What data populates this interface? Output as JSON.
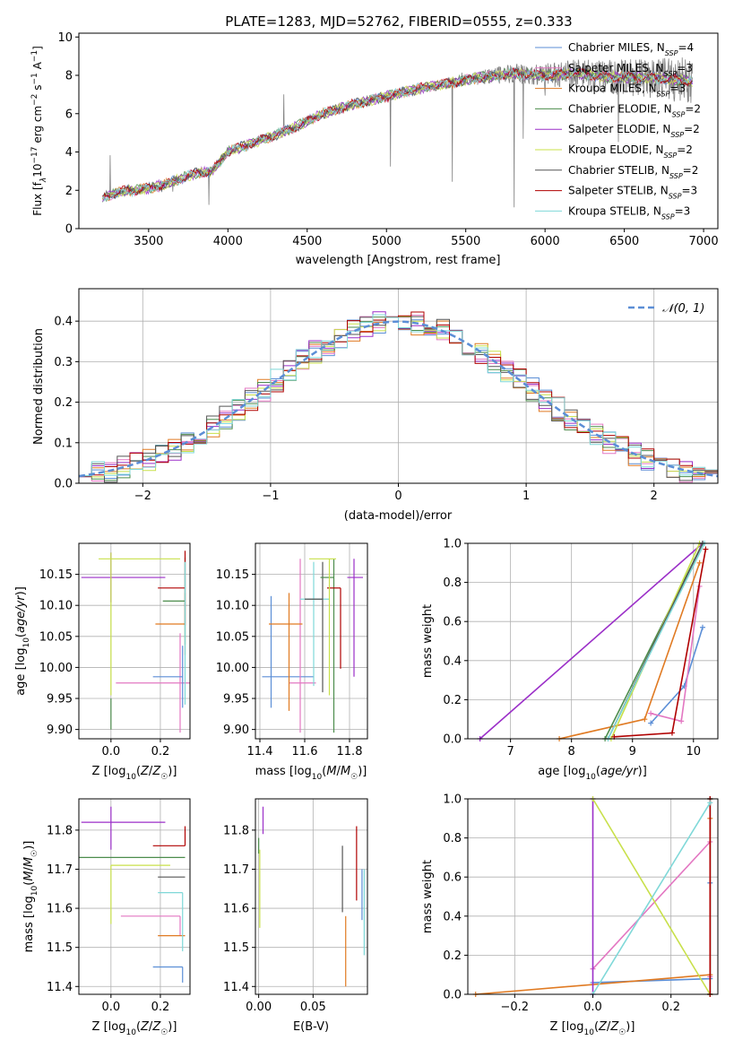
{
  "figure": {
    "title": "PLATE=1283, MJD=52762, FIBERID=0555, z=0.333"
  },
  "chart_data": [
    {
      "id": "spectrum",
      "type": "line",
      "xlabel": "wavelength [Angstrom, rest frame]",
      "ylabel": "Flux [f_λ 10^-17 erg cm^-2 s^-1 A^-1]",
      "xlim": [
        3060,
        7090
      ],
      "ylim": [
        0,
        10.2
      ],
      "xticks": [
        3500,
        4000,
        4500,
        5000,
        5500,
        6000,
        6500,
        7000
      ],
      "yticks": [
        0,
        2,
        4,
        6,
        8,
        10
      ],
      "grid": false,
      "legend_position": "top-right",
      "x_start": 3210,
      "x_end": 6930,
      "continuum": [
        [
          3210,
          1.6
        ],
        [
          3300,
          1.9
        ],
        [
          3400,
          2.0
        ],
        [
          3500,
          2.1
        ],
        [
          3600,
          2.3
        ],
        [
          3700,
          2.6
        ],
        [
          3800,
          2.9
        ],
        [
          3900,
          3.0
        ],
        [
          4000,
          4.0
        ],
        [
          4200,
          4.6
        ],
        [
          4400,
          5.2
        ],
        [
          4600,
          6.0
        ],
        [
          4800,
          6.5
        ],
        [
          5000,
          6.9
        ],
        [
          5200,
          7.3
        ],
        [
          5400,
          7.6
        ],
        [
          5600,
          7.9
        ],
        [
          5800,
          8.1
        ],
        [
          6000,
          8.0
        ],
        [
          6200,
          8.1
        ],
        [
          6400,
          7.9
        ],
        [
          6600,
          7.9
        ],
        [
          6800,
          7.8
        ],
        [
          6930,
          7.7
        ]
      ],
      "models": [
        {
          "name": "Chabrier MILES, N_SSP=4",
          "color": "#5b8ed6"
        },
        {
          "name": "Salpeter MILES, N_SSP=3",
          "color": "#e377c2"
        },
        {
          "name": "Kroupa MILES, N_SSP=3",
          "color": "#e07a22"
        },
        {
          "name": "Chabrier ELODIE, N_SSP=2",
          "color": "#4c8c4c"
        },
        {
          "name": "Salpeter ELODIE, N_SSP=2",
          "color": "#9b2fc8"
        },
        {
          "name": "Kroupa ELODIE, N_SSP=2",
          "color": "#c8e04a"
        },
        {
          "name": "Chabrier STELIB, N_SSP=2",
          "color": "#555555"
        },
        {
          "name": "Salpeter STELIB, N_SSP=3",
          "color": "#b00000"
        },
        {
          "name": "Kroupa STELIB, N_SSP=3",
          "color": "#7fd8d8"
        }
      ],
      "legend_labels": [
        {
          "base": "Chabrier MILES, N",
          "sub": "SSP",
          "tail": "=4"
        },
        {
          "base": "Salpeter MILES, N",
          "sub": "SSP",
          "tail": "=3"
        },
        {
          "base": "Kroupa MILES, N",
          "sub": "SSP",
          "tail": "=3"
        },
        {
          "base": "Chabrier ELODIE, N",
          "sub": "SSP",
          "tail": "=2"
        },
        {
          "base": "Salpeter ELODIE, N",
          "sub": "SSP",
          "tail": "=2"
        },
        {
          "base": "Kroupa ELODIE, N",
          "sub": "SSP",
          "tail": "=2"
        },
        {
          "base": "Chabrier STELIB, N",
          "sub": "SSP",
          "tail": "=2"
        },
        {
          "base": "Salpeter STELIB, N",
          "sub": "SSP",
          "tail": "=3"
        },
        {
          "base": "Kroupa STELIB, N",
          "sub": "SSP",
          "tail": "=3"
        }
      ]
    },
    {
      "id": "residuals",
      "type": "histogram",
      "xlabel": "(data-model)/error",
      "ylabel": "Normed distribution",
      "xlim": [
        -2.5,
        2.5
      ],
      "ylim": [
        0,
        0.48
      ],
      "xticks": [
        -2,
        -1,
        0,
        1,
        2
      ],
      "yticks": [
        0.0,
        0.1,
        0.2,
        0.3,
        0.4
      ],
      "grid": true,
      "bin_width": 0.1,
      "legend_position": "top-right",
      "reference_curve": {
        "name": "N(0,1)",
        "color": "#5b8ed6",
        "style": "dashed"
      }
    },
    {
      "id": "age_vs_Z",
      "type": "scatter",
      "xlabel": "Z [log10(Z/Z☉)]",
      "ylabel": "age [log10(age/yr)]",
      "xlim": [
        -0.13,
        0.32
      ],
      "ylim": [
        9.885,
        10.2
      ],
      "xticks": [
        0.0,
        0.2
      ],
      "yticks": [
        9.9,
        9.95,
        10.0,
        10.05,
        10.1,
        10.15
      ],
      "grid": true,
      "points": [
        {
          "model": 1,
          "x": 0.28,
          "y": 9.975,
          "xerr": [
            0.26,
            0.05
          ],
          "yerr": [
            0.08,
            0.08
          ]
        },
        {
          "model": 0,
          "x": 0.29,
          "y": 9.985,
          "xerr": [
            0.12,
            0.0
          ],
          "yerr": [
            0.05,
            0.05
          ]
        },
        {
          "model": 2,
          "x": 0.3,
          "y": 10.07,
          "xerr": [
            0.12,
            0.0
          ],
          "yerr": [
            0.05,
            0.05
          ]
        },
        {
          "model": 3,
          "x": 0.3,
          "y": 10.107,
          "xerr": [
            0.09,
            0.0
          ],
          "yerr": [
            0.07,
            0.07
          ]
        },
        {
          "model": 7,
          "x": 0.3,
          "y": 10.128,
          "xerr": [
            0.11,
            0.0
          ],
          "yerr": [
            0.06,
            0.06
          ]
        },
        {
          "model": 4,
          "x": 0.0,
          "y": 10.145,
          "xerr": [
            0.12,
            0.22
          ],
          "yerr": [
            0.04,
            0.04
          ]
        },
        {
          "model": 5,
          "x": 0.0,
          "y": 10.175,
          "xerr": [
            0.05,
            0.28
          ],
          "yerr": [
            0.22,
            0.01
          ]
        },
        {
          "model": 3,
          "x": 0.0,
          "y": 9.9,
          "xerr": [
            0.0,
            0.0
          ],
          "yerr": [
            0.0,
            0.05
          ]
        },
        {
          "model": 8,
          "x": 0.3,
          "y": 10.11,
          "xerr": [
            0.0,
            0.0
          ],
          "yerr": [
            0.17,
            0.06
          ]
        }
      ]
    },
    {
      "id": "age_vs_mass",
      "type": "scatter",
      "xlabel": "mass [log10(M/M☉)]",
      "ylabel": "",
      "xlim": [
        11.38,
        11.88
      ],
      "ylim": [
        9.885,
        10.2
      ],
      "xticks": [
        11.4,
        11.6,
        11.8
      ],
      "yticks": [
        9.9,
        9.95,
        10.0,
        10.05,
        10.1,
        10.15
      ],
      "grid": true,
      "points": [
        {
          "model": 0,
          "x": 11.45,
          "y": 9.985,
          "xerr": [
            0.04,
            0.19
          ],
          "yerr": [
            0.05,
            0.13
          ]
        },
        {
          "model": 1,
          "x": 11.58,
          "y": 9.975,
          "xerr": [
            0.05,
            0.07
          ],
          "yerr": [
            0.08,
            0.2
          ]
        },
        {
          "model": 2,
          "x": 11.53,
          "y": 10.07,
          "xerr": [
            0.09,
            0.06
          ],
          "yerr": [
            0.14,
            0.05
          ]
        },
        {
          "model": 8,
          "x": 11.64,
          "y": 10.11,
          "xerr": [
            0.06,
            0.07
          ],
          "yerr": [
            0.14,
            0.06
          ]
        },
        {
          "model": 6,
          "x": 11.68,
          "y": 10.11,
          "xerr": [
            0.08,
            0.0
          ],
          "yerr": [
            0.15,
            0.06
          ]
        },
        {
          "model": 3,
          "x": 11.73,
          "y": 10.145,
          "xerr": [
            0.06,
            0.0
          ],
          "yerr": [
            0.25,
            0.03
          ]
        },
        {
          "model": 7,
          "x": 11.76,
          "y": 10.128,
          "xerr": [
            0.06,
            0.0
          ],
          "yerr": [
            0.13,
            0.0
          ]
        },
        {
          "model": 4,
          "x": 11.82,
          "y": 10.145,
          "xerr": [
            0.03,
            0.04
          ],
          "yerr": [
            0.16,
            0.03
          ]
        },
        {
          "model": 5,
          "x": 11.71,
          "y": 10.175,
          "xerr": [
            0.09,
            0.03
          ],
          "yerr": [
            0.22,
            0.0
          ]
        }
      ]
    },
    {
      "id": "mass_weight_vs_age",
      "type": "line",
      "xlabel": "age [log10(age/yr)]",
      "ylabel": "mass weight",
      "xlim": [
        6.3,
        10.4
      ],
      "ylim": [
        0,
        1.0
      ],
      "xticks": [
        7,
        8,
        9,
        10
      ],
      "yticks": [
        0.0,
        0.2,
        0.4,
        0.6,
        0.8,
        1.0
      ],
      "grid": true,
      "series": [
        {
          "model": 0,
          "x": [
            9.3,
            9.85,
            10.15
          ],
          "y": [
            0.08,
            0.27,
            0.57
          ]
        },
        {
          "model": 1,
          "x": [
            9.3,
            9.8,
            10.1
          ],
          "y": [
            0.13,
            0.09,
            0.78
          ]
        },
        {
          "model": 2,
          "x": [
            7.8,
            9.2,
            10.1
          ],
          "y": [
            0.0,
            0.1,
            0.9
          ]
        },
        {
          "model": 3,
          "x": [
            8.55,
            10.15
          ],
          "y": [
            0.0,
            1.0
          ]
        },
        {
          "model": 4,
          "x": [
            6.5,
            10.15
          ],
          "y": [
            0.0,
            1.0
          ]
        },
        {
          "model": 5,
          "x": [
            8.65,
            10.1
          ],
          "y": [
            0.0,
            1.0
          ]
        },
        {
          "model": 6,
          "x": [
            8.6,
            10.15
          ],
          "y": [
            0.0,
            1.0
          ]
        },
        {
          "model": 7,
          "x": [
            8.7,
            9.65,
            10.2
          ],
          "y": [
            0.01,
            0.03,
            0.97
          ]
        },
        {
          "model": 8,
          "x": [
            8.6,
            10.18
          ],
          "y": [
            0.0,
            1.0
          ]
        }
      ]
    },
    {
      "id": "mass_vs_Z",
      "type": "scatter",
      "xlabel": "Z [log10(Z/Z☉)]",
      "ylabel": "mass [log10(M/M☉)]",
      "xlim": [
        -0.13,
        0.32
      ],
      "ylim": [
        11.38,
        11.88
      ],
      "xticks": [
        0.0,
        0.2
      ],
      "yticks": [
        11.4,
        11.5,
        11.6,
        11.7,
        11.8
      ],
      "grid": true,
      "points": [
        {
          "model": 0,
          "x": 0.29,
          "y": 11.45,
          "xerr": [
            0.12,
            0.0
          ],
          "yerr": [
            0.04,
            0.0
          ]
        },
        {
          "model": 1,
          "x": 0.28,
          "y": 11.58,
          "xerr": [
            0.24,
            0.0
          ],
          "yerr": [
            0.05,
            0.0
          ]
        },
        {
          "model": 2,
          "x": 0.3,
          "y": 11.53,
          "xerr": [
            0.11,
            0.0
          ],
          "yerr": [
            0.0,
            0.0
          ]
        },
        {
          "model": 3,
          "x": 0.3,
          "y": 11.73,
          "xerr": [
            0.43,
            0.0
          ],
          "yerr": [
            0.0,
            0.0
          ]
        },
        {
          "model": 4,
          "x": 0.0,
          "y": 11.82,
          "xerr": [
            0.12,
            0.22
          ],
          "yerr": [
            0.07,
            0.04
          ]
        },
        {
          "model": 5,
          "x": 0.0,
          "y": 11.71,
          "xerr": [
            0.0,
            0.24
          ],
          "yerr": [
            0.15,
            0.0
          ]
        },
        {
          "model": 6,
          "x": 0.3,
          "y": 11.68,
          "xerr": [
            0.11,
            0.0
          ],
          "yerr": [
            0.0,
            0.0
          ]
        },
        {
          "model": 7,
          "x": 0.3,
          "y": 11.76,
          "xerr": [
            0.13,
            0.0
          ],
          "yerr": [
            0.0,
            0.05
          ]
        },
        {
          "model": 8,
          "x": 0.29,
          "y": 11.64,
          "xerr": [
            0.1,
            0.0
          ],
          "yerr": [
            0.15,
            0.0
          ]
        }
      ]
    },
    {
      "id": "mass_vs_EBV",
      "type": "scatter",
      "xlabel": "E(B-V)",
      "ylabel": "",
      "xlim": [
        -0.003,
        0.1
      ],
      "ylim": [
        11.38,
        11.88
      ],
      "xticks": [
        0.0,
        0.05
      ],
      "yticks": [
        11.4,
        11.5,
        11.6,
        11.7,
        11.8
      ],
      "grid": true,
      "points": [
        {
          "model": 3,
          "x": 0.0,
          "y": 11.76,
          "xerr": [
            0.0,
            0.0
          ],
          "yerr": [
            0.02,
            0.02
          ]
        },
        {
          "model": 4,
          "x": 0.004,
          "y": 11.82,
          "xerr": [
            0.0,
            0.0
          ],
          "yerr": [
            0.03,
            0.04
          ]
        },
        {
          "model": 5,
          "x": 0.001,
          "y": 11.65,
          "xerr": [
            0.0,
            0.0
          ],
          "yerr": [
            0.1,
            0.1
          ]
        },
        {
          "model": 6,
          "x": 0.077,
          "y": 11.66,
          "xerr": [
            0.0,
            0.0
          ],
          "yerr": [
            0.07,
            0.1
          ]
        },
        {
          "model": 2,
          "x": 0.08,
          "y": 11.53,
          "xerr": [
            0.0,
            0.0
          ],
          "yerr": [
            0.13,
            0.05
          ]
        },
        {
          "model": 7,
          "x": 0.09,
          "y": 11.72,
          "xerr": [
            0.0,
            0.0
          ],
          "yerr": [
            0.1,
            0.09
          ]
        },
        {
          "model": 0,
          "x": 0.095,
          "y": 11.65,
          "xerr": [
            0.0,
            0.0
          ],
          "yerr": [
            0.08,
            0.05
          ]
        },
        {
          "model": 8,
          "x": 0.097,
          "y": 11.59,
          "xerr": [
            0.0,
            0.0
          ],
          "yerr": [
            0.11,
            0.11
          ]
        }
      ]
    },
    {
      "id": "mass_weight_vs_Z",
      "type": "line",
      "xlabel": "Z [log10(Z/Z☉)]",
      "ylabel": "mass weight",
      "xlim": [
        -0.32,
        0.32
      ],
      "ylim": [
        0,
        1.0
      ],
      "xticks": [
        -0.2,
        0.0,
        0.2
      ],
      "yticks": [
        0.0,
        0.2,
        0.4,
        0.6,
        0.8,
        1.0
      ],
      "grid": true,
      "series": [
        {
          "model": 0,
          "x": [
            0.0,
            0.3,
            0.3
          ],
          "y": [
            0.06,
            0.08,
            0.57
          ]
        },
        {
          "model": 1,
          "x": [
            0.0,
            0.3,
            0.3
          ],
          "y": [
            0.13,
            0.78,
            0.09
          ]
        },
        {
          "model": 2,
          "x": [
            -0.3,
            0.3,
            0.3
          ],
          "y": [
            0.0,
            0.1,
            0.9
          ]
        },
        {
          "model": 3,
          "x": [
            0.3,
            0.3
          ],
          "y": [
            0.0,
            1.0
          ]
        },
        {
          "model": 4,
          "x": [
            0.0,
            0.0
          ],
          "y": [
            0.0,
            1.0
          ]
        },
        {
          "model": 5,
          "x": [
            0.0,
            0.3
          ],
          "y": [
            1.0,
            0.0
          ]
        },
        {
          "model": 6,
          "x": [
            0.3,
            0.3
          ],
          "y": [
            0.0,
            1.0
          ]
        },
        {
          "model": 7,
          "x": [
            0.3,
            0.3
          ],
          "y": [
            0.0,
            1.0
          ]
        },
        {
          "model": 8,
          "x": [
            0.0,
            0.3
          ],
          "y": [
            0.0,
            0.98
          ]
        }
      ]
    }
  ]
}
